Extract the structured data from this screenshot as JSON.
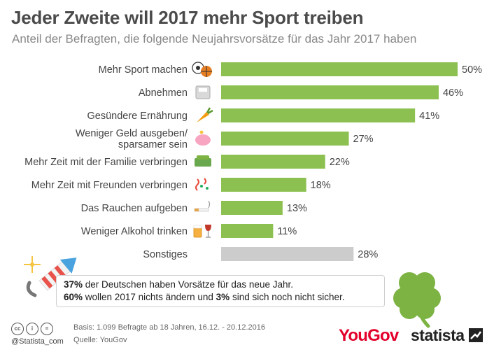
{
  "title": "Jeder Zweite will 2017 mehr Sport treiben",
  "subtitle": "Anteil der Befragten, die folgende Neujahrsvorsätze für das Jahr 2017 haben",
  "chart_data": {
    "type": "bar",
    "orientation": "horizontal",
    "categories": [
      "Mehr Sport machen",
      "Abnehmen",
      "Gesündere Ernährung",
      "Weniger Geld ausgeben/ sparsamer sein",
      "Mehr Zeit mit der Familie verbringen",
      "Mehr Zeit mit Freunden verbringen",
      "Das Rauchen aufgeben",
      "Weniger Alkohol trinken",
      "Sonstiges"
    ],
    "category_lines": [
      [
        "Mehr Sport machen"
      ],
      [
        "Abnehmen"
      ],
      [
        "Gesündere Ernährung"
      ],
      [
        "Weniger Geld ausgeben/",
        "sparsamer sein"
      ],
      [
        "Mehr Zeit mit der Familie verbringen"
      ],
      [
        "Mehr Zeit mit Freunden verbringen"
      ],
      [
        "Das Rauchen aufgeben"
      ],
      [
        "Weniger Alkohol trinken"
      ],
      [
        "Sonstiges"
      ]
    ],
    "values": [
      50,
      46,
      41,
      27,
      22,
      18,
      13,
      11,
      28
    ],
    "value_labels": [
      "50%",
      "46%",
      "41%",
      "27%",
      "22%",
      "18%",
      "13%",
      "11%",
      "28%"
    ],
    "icons": [
      "sport-balls-icon",
      "scale-icon",
      "carrot-icon",
      "piggy-bank-icon",
      "sofa-icon",
      "confetti-icon",
      "cigarette-icon",
      "beer-wine-icon",
      ""
    ],
    "unit": "%",
    "xlim": [
      0,
      50
    ],
    "grid": false,
    "colors": {
      "main": "#8cc152",
      "other": "#cccccc"
    }
  },
  "note": {
    "line1": {
      "pct": "37%",
      "text": " der Deutschen haben Vorsätze für das neue Jahr."
    },
    "line2": {
      "pct1": "60%",
      "text1": " wollen 2017 nichts ändern und ",
      "pct2": "3%",
      "text2": " sind sich noch nicht sicher."
    }
  },
  "footer": {
    "handle": "@Statista_com",
    "basis": "Basis: 1.099 Befragte ab 18 Jahren, 16.12. - 20.12.2016",
    "source": "Quelle: YouGov",
    "yougov": "YouGov",
    "statista": "statista"
  }
}
